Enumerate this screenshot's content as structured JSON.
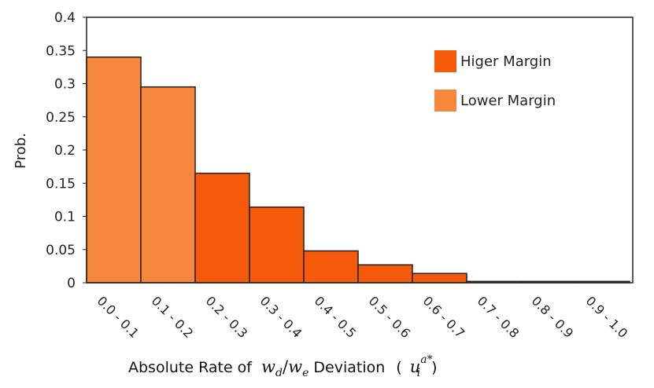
{
  "chart_data": {
    "type": "bar",
    "categories": [
      "0.0 - 0.1",
      "0.1 - 0.2",
      "0.2 - 0.3",
      "0.3 - 0.4",
      "0.4 - 0.5",
      "0.5 - 0.6",
      "0.6 - 0.7",
      "0.7 - 0.8",
      "0.8 - 0.9",
      "0.9 - 1.0"
    ],
    "values": [
      0.34,
      0.295,
      0.165,
      0.114,
      0.048,
      0.027,
      0.014,
      0.002,
      0.002,
      0.002
    ],
    "bar_group": [
      "lower",
      "lower",
      "higher",
      "higher",
      "higher",
      "higher",
      "higher",
      "higher",
      "higher",
      "higher"
    ],
    "legend": [
      {
        "key": "higher",
        "label": "Higer Margin",
        "color": "#f55a0a"
      },
      {
        "key": "lower",
        "label": "Lower Margin",
        "color": "#f7873c"
      }
    ],
    "title": "",
    "ylabel": "Prob.",
    "xlabel": {
      "prefix": "Absolute Rate of ",
      "math1": "w",
      "math1_sub": "d",
      "slash": "/",
      "math2": "w",
      "math2_sub": "e",
      "middle": " Deviation",
      "paren_open": "(",
      "math3": "u",
      "math3_sub": "i",
      "math3_sup": "a*",
      "paren_close": ")"
    },
    "ylim": [
      0,
      0.4
    ],
    "yticks": [
      0,
      0.05,
      0.1,
      0.15,
      0.2,
      0.25,
      0.3,
      0.35,
      0.4
    ],
    "ytick_labels": [
      "0",
      "0.05",
      "0.1",
      "0.15",
      "0.2",
      "0.25",
      "0.3",
      "0.35",
      "0.4"
    ],
    "grid": false,
    "legend_position": "top-right"
  }
}
